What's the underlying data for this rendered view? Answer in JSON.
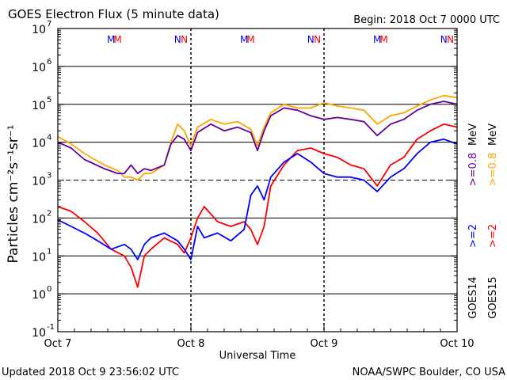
{
  "chart_data": {
    "type": "line",
    "title": "GOES Electron Flux (5 minute data)",
    "begin_label": "Begin: 2018 Oct 7 0000 UTC",
    "xlabel": "Universal Time",
    "ylabel": "Particles cm⁻²s⁻¹sr⁻¹",
    "y_scale": "log",
    "ylim_exponents": [
      -1,
      7
    ],
    "ytick_labels": [
      {
        "exp": 7,
        "text": "7"
      },
      {
        "exp": 6,
        "text": "6"
      },
      {
        "exp": 5,
        "text": "5"
      },
      {
        "exp": 4,
        "text": "4"
      },
      {
        "exp": 3,
        "text": "3"
      },
      {
        "exp": 2,
        "text": "2"
      },
      {
        "exp": 1,
        "text": "1"
      },
      {
        "exp": 0,
        "text": "0"
      },
      {
        "exp": -1,
        "text": "-1"
      }
    ],
    "ytick_base": "10",
    "x_days": [
      "Oct 7",
      "Oct 8",
      "Oct 9",
      "Oct 10"
    ],
    "xlim_days": [
      0,
      3
    ],
    "solid_lines_exp": [
      0,
      1,
      2,
      4,
      5,
      6
    ],
    "dashed_line_exp": 3,
    "day_dividers": [
      1,
      2
    ],
    "noon_midnight_markers": [
      {
        "day": 0.4,
        "label": "M",
        "color": "#0000ff"
      },
      {
        "day": 0.45,
        "label": "M",
        "color": "#ff0000"
      },
      {
        "day": 0.9,
        "label": "N",
        "color": "#0000ff"
      },
      {
        "day": 0.95,
        "label": "N",
        "color": "#ff0000"
      },
      {
        "day": 1.4,
        "label": "M",
        "color": "#0000ff"
      },
      {
        "day": 1.45,
        "label": "M",
        "color": "#ff0000"
      },
      {
        "day": 1.9,
        "label": "N",
        "color": "#0000ff"
      },
      {
        "day": 1.95,
        "label": "N",
        "color": "#ff0000"
      },
      {
        "day": 2.4,
        "label": "M",
        "color": "#0000ff"
      },
      {
        "day": 2.45,
        "label": "M",
        "color": "#ff0000"
      },
      {
        "day": 2.9,
        "label": "N",
        "color": "#0000ff"
      },
      {
        "day": 2.95,
        "label": "N",
        "color": "#ff0000"
      }
    ],
    "legend": {
      "energy_high": ">=0.8  >=0.8  MeV",
      "energy_low": ">=2  >=2  MeV",
      "sat14": "GOES14",
      "sat15": "GOES15",
      "energy_high_14": ">=0.8",
      "energy_high_15": ">=0.8",
      "energy_low_14": ">=2",
      "energy_low_15": ">=2",
      "unit": "MeV"
    },
    "series": [
      {
        "color": "#ffa500",
        "x": [
          0,
          0.1,
          0.2,
          0.35,
          0.45,
          0.5,
          0.55,
          0.6,
          0.65,
          0.7,
          0.8,
          0.85,
          0.9,
          0.95,
          1.0,
          1.05,
          1.15,
          1.25,
          1.35,
          1.45,
          1.5,
          1.55,
          1.6,
          1.7,
          1.8,
          1.9,
          2.0,
          2.1,
          2.2,
          2.3,
          2.4,
          2.5,
          2.6,
          2.7,
          2.8,
          2.9,
          3.0
        ],
        "y": [
          14000,
          9000,
          5000,
          2500,
          1800,
          1200,
          1200,
          1000,
          1500,
          1500,
          2500,
          10000,
          30000,
          20000,
          8000,
          25000,
          40000,
          30000,
          35000,
          22000,
          8000,
          25000,
          60000,
          100000,
          80000,
          80000,
          110000,
          90000,
          80000,
          70000,
          30000,
          50000,
          60000,
          90000,
          130000,
          170000,
          150000
        ]
      },
      {
        "color": "#660099",
        "x": [
          0,
          0.1,
          0.2,
          0.35,
          0.45,
          0.5,
          0.55,
          0.6,
          0.65,
          0.7,
          0.8,
          0.85,
          0.9,
          0.95,
          1.0,
          1.05,
          1.15,
          1.25,
          1.35,
          1.45,
          1.5,
          1.55,
          1.6,
          1.7,
          1.8,
          1.9,
          2.0,
          2.1,
          2.2,
          2.3,
          2.4,
          2.5,
          2.6,
          2.7,
          2.8,
          2.9,
          3.0
        ],
        "y": [
          10000,
          7000,
          3500,
          2000,
          1500,
          1500,
          2500,
          1500,
          2000,
          1800,
          2500,
          9000,
          15000,
          12000,
          6000,
          18000,
          30000,
          20000,
          25000,
          18000,
          6000,
          20000,
          50000,
          80000,
          70000,
          50000,
          40000,
          45000,
          40000,
          35000,
          15000,
          30000,
          40000,
          70000,
          100000,
          120000,
          100000
        ]
      },
      {
        "color": "#ff0000",
        "x": [
          0,
          0.1,
          0.2,
          0.3,
          0.4,
          0.5,
          0.55,
          0.6,
          0.65,
          0.7,
          0.8,
          0.9,
          0.95,
          1.0,
          1.05,
          1.1,
          1.2,
          1.3,
          1.4,
          1.45,
          1.5,
          1.55,
          1.6,
          1.7,
          1.8,
          1.9,
          2.0,
          2.1,
          2.2,
          2.3,
          2.4,
          2.5,
          2.6,
          2.7,
          2.8,
          2.9,
          3.0
        ],
        "y": [
          200,
          150,
          80,
          40,
          15,
          10,
          5,
          1.5,
          10,
          15,
          30,
          20,
          12,
          30,
          100,
          200,
          80,
          60,
          80,
          50,
          20,
          60,
          700,
          2500,
          6000,
          7000,
          5000,
          4000,
          2500,
          2000,
          700,
          2500,
          4000,
          12000,
          20000,
          30000,
          25000
        ]
      },
      {
        "color": "#0000ff",
        "x": [
          0,
          0.1,
          0.2,
          0.3,
          0.4,
          0.5,
          0.55,
          0.6,
          0.65,
          0.7,
          0.8,
          0.9,
          0.95,
          1.0,
          1.05,
          1.1,
          1.2,
          1.3,
          1.4,
          1.45,
          1.5,
          1.55,
          1.6,
          1.7,
          1.8,
          1.9,
          2.0,
          2.1,
          2.2,
          2.3,
          2.4,
          2.5,
          2.6,
          2.7,
          2.8,
          2.9,
          3.0
        ],
        "y": [
          90,
          60,
          40,
          25,
          15,
          20,
          15,
          8,
          20,
          30,
          40,
          25,
          15,
          8,
          60,
          30,
          40,
          25,
          50,
          400,
          700,
          300,
          1200,
          3000,
          5000,
          3000,
          1500,
          1200,
          1200,
          1000,
          500,
          1200,
          2000,
          5000,
          10000,
          12000,
          9000
        ]
      }
    ],
    "footer_left": "Updated 2018 Oct  9 23:56:02 UTC",
    "footer_right": "NOAA/SWPC Boulder, CO USA"
  }
}
